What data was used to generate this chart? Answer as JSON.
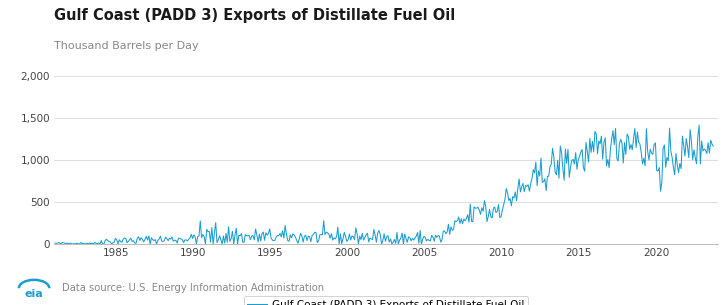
{
  "title": "Gulf Coast (PADD 3) Exports of Distillate Fuel Oil",
  "ylabel": "Thousand Barrels per Day",
  "line_color": "#1a9ed0",
  "legend_label": "Gulf Coast (PADD 3) Exports of Distillate Fuel Oil",
  "source_text": "Data source: U.S. Energy Information Administration",
  "ylim": [
    0,
    2000
  ],
  "yticks": [
    0,
    500,
    1000,
    1500,
    2000
  ],
  "xtick_years": [
    1985,
    1990,
    1995,
    2000,
    2005,
    2010,
    2015,
    2020
  ],
  "xstart": 1981,
  "xend": 2024,
  "background_color": "#ffffff",
  "title_fontsize": 10.5,
  "subtitle_fontsize": 8,
  "axis_fontsize": 7.5,
  "legend_fontsize": 7.5,
  "line_color_grid": "#d8d8d8",
  "spine_color": "#bbbbbb",
  "title_color": "#1a1a1a",
  "subtitle_color": "#888888",
  "source_color": "#888888",
  "eia_color": "#1a9ed0"
}
